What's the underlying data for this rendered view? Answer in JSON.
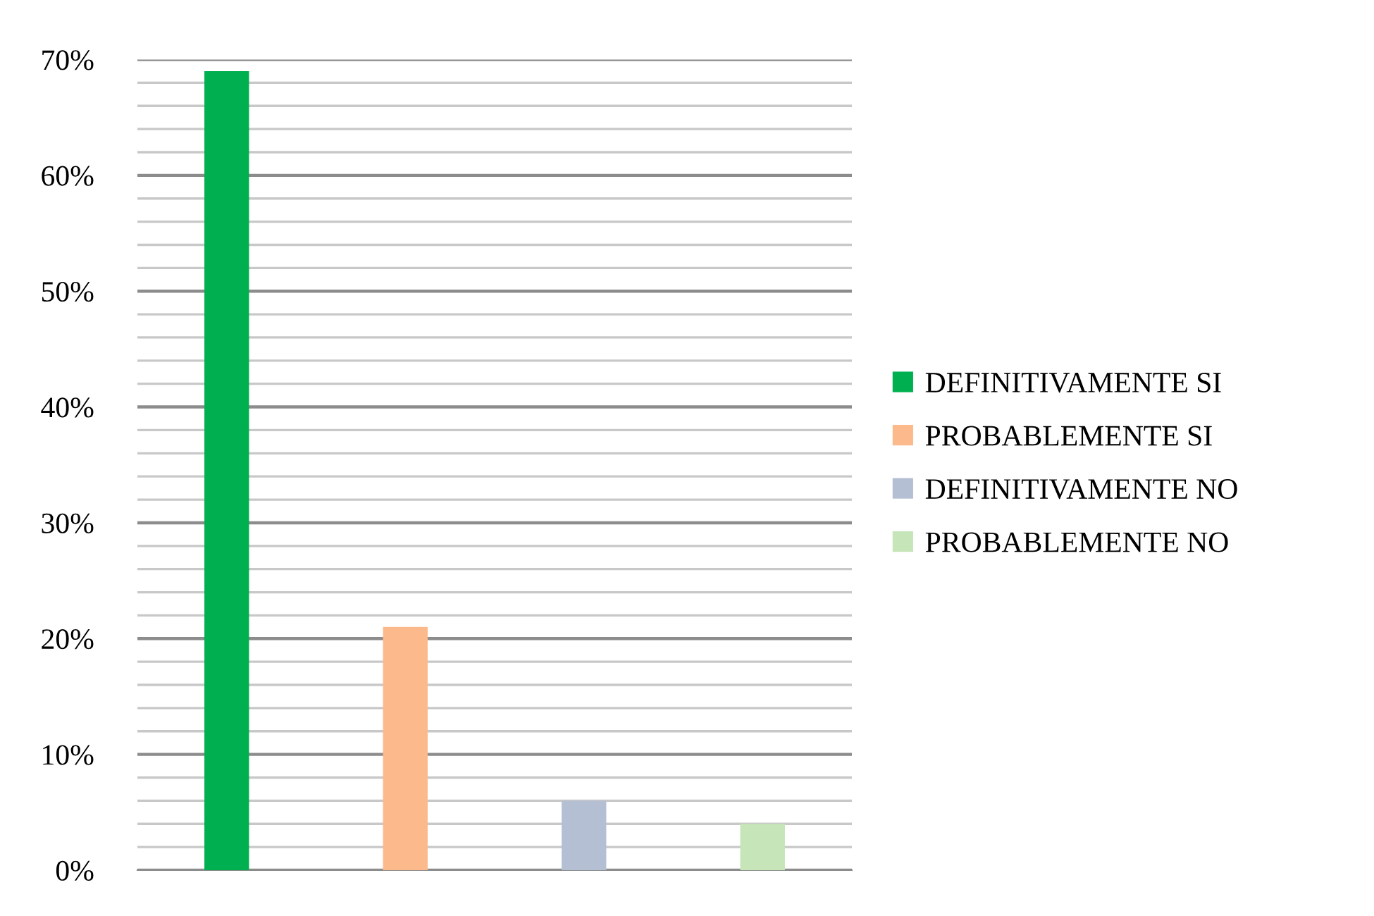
{
  "chart_data": {
    "type": "bar",
    "categories": [
      null,
      null,
      null,
      null
    ],
    "series": [
      {
        "name": "DEFINITIVAMENTE SI",
        "color": "#00b050",
        "values": [
          69,
          null,
          null,
          null
        ]
      },
      {
        "name": "PROBABLEMENTE SI",
        "color": "#fbb98c",
        "values": [
          null,
          21,
          null,
          null
        ]
      },
      {
        "name": "DEFINITIVAMENTE NO",
        "color": "#b4bfd3",
        "values": [
          null,
          null,
          6,
          null
        ]
      },
      {
        "name": "PROBABLEMENTE NO",
        "color": "#c6e5b8",
        "values": [
          null,
          null,
          null,
          4
        ]
      }
    ],
    "ylim": [
      0,
      70
    ],
    "yticks": [
      {
        "value": 0,
        "label": "0%"
      },
      {
        "value": 2,
        "label": null
      },
      {
        "value": 4,
        "label": null
      },
      {
        "value": 6,
        "label": null
      },
      {
        "value": 8,
        "label": null
      },
      {
        "value": 10,
        "label": "10%"
      },
      {
        "value": 12,
        "label": null
      },
      {
        "value": 14,
        "label": null
      },
      {
        "value": 16,
        "label": null
      },
      {
        "value": 18,
        "label": null
      },
      {
        "value": 20,
        "label": "20%"
      },
      {
        "value": 22,
        "label": null
      },
      {
        "value": 24,
        "label": null
      },
      {
        "value": 26,
        "label": null
      },
      {
        "value": 28,
        "label": null
      },
      {
        "value": 30,
        "label": "30%"
      },
      {
        "value": 32,
        "label": null
      },
      {
        "value": 34,
        "label": null
      },
      {
        "value": 36,
        "label": null
      },
      {
        "value": 38,
        "label": null
      },
      {
        "value": 40,
        "label": "40%"
      },
      {
        "value": 42,
        "label": null
      },
      {
        "value": 44,
        "label": null
      },
      {
        "value": 46,
        "label": null
      },
      {
        "value": 48,
        "label": null
      },
      {
        "value": 50,
        "label": "50%"
      },
      {
        "value": 52,
        "label": null
      },
      {
        "value": 54,
        "label": null
      },
      {
        "value": 56,
        "label": null
      },
      {
        "value": 58,
        "label": null
      },
      {
        "value": 60,
        "label": "60%"
      },
      {
        "value": 62,
        "label": null
      },
      {
        "value": 64,
        "label": null
      },
      {
        "value": 66,
        "label": null
      },
      {
        "value": 68,
        "label": null
      },
      {
        "value": 70,
        "label": "70%"
      }
    ],
    "grid": "y",
    "legend": "right",
    "tick_labels": "y"
  }
}
